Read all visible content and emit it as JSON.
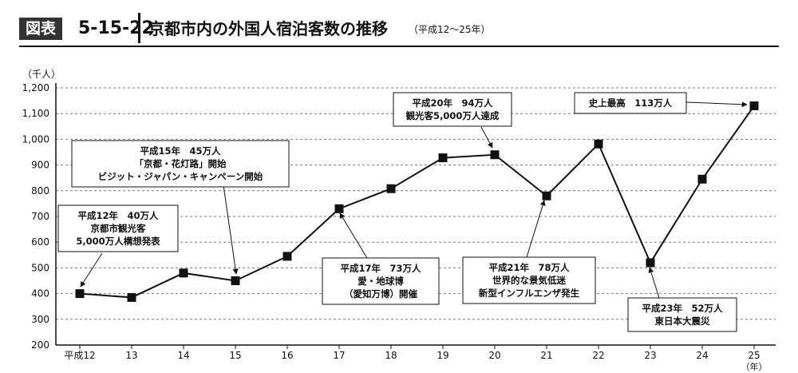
{
  "header": {
    "badge": "図表",
    "fig_number": "5-15-22",
    "title": "京都市内の外国人宿泊客数の推移",
    "subtitle": "（平成12～25年）"
  },
  "chart_data": {
    "type": "line",
    "unit_label": "（千人）",
    "x": [
      "平成12",
      "13",
      "14",
      "15",
      "16",
      "17",
      "18",
      "19",
      "20",
      "21",
      "22",
      "23",
      "24",
      "25"
    ],
    "x_unit": "（年）",
    "values": [
      400,
      385,
      480,
      450,
      545,
      730,
      808,
      928,
      940,
      780,
      982,
      520,
      845,
      1130
    ],
    "ylim": [
      200,
      1200
    ],
    "yticks": [
      "200",
      "300",
      "400",
      "500",
      "600",
      "700",
      "800",
      "900",
      "1,000",
      "1,100",
      "1,200"
    ],
    "grid": true,
    "annotations": [
      {
        "point": 0,
        "lines": [
          "平成12年　40万人",
          "京都市観光客",
          "5,000万人構想発表"
        ]
      },
      {
        "point": 3,
        "lines": [
          "平成15年　45万人",
          "「京都・花灯路」開始",
          "ビジット・ジャパン・キャンペーン開始"
        ]
      },
      {
        "point": 5,
        "lines": [
          "平成17年　73万人",
          "愛・地球博",
          "（愛知万博）開催"
        ]
      },
      {
        "point": 8,
        "lines": [
          "平成20年　94万人",
          "観光客5,000万人達成"
        ]
      },
      {
        "point": 9,
        "lines": [
          "平成21年　78万人",
          "世界的な景気低迷",
          "新型インフルエンザ発生"
        ]
      },
      {
        "point": 11,
        "lines": [
          "平成23年　52万人",
          "東日本大震災"
        ]
      },
      {
        "point": 13,
        "lines": [
          "史上最高　113万人"
        ]
      }
    ]
  }
}
